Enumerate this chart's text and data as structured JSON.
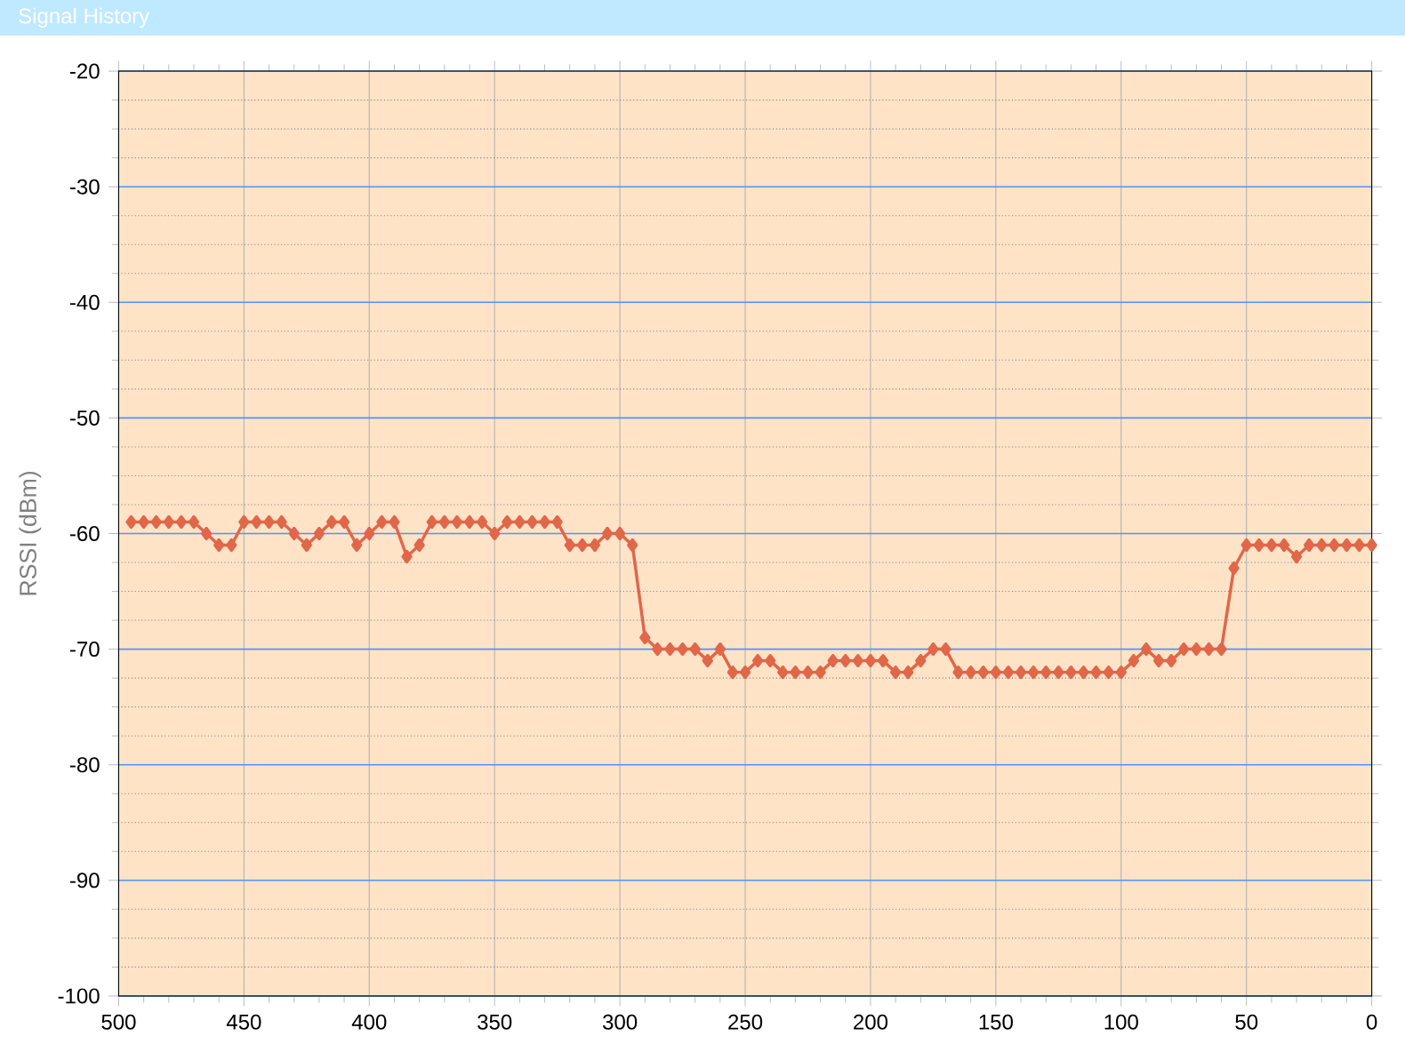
{
  "chart_data": {
    "type": "line",
    "title": "Signal History",
    "ylabel": "RSSI (dBm)",
    "xlim": [
      500,
      0
    ],
    "xticks": [
      500,
      450,
      400,
      350,
      300,
      250,
      200,
      150,
      100,
      50,
      0
    ],
    "ylim": [
      -100,
      -20
    ],
    "yticks": [
      -100,
      -90,
      -80,
      -70,
      -60,
      -50,
      -40,
      -30,
      -20
    ],
    "grid": true,
    "marker": "diamond",
    "line_style": "solid",
    "series": [
      {
        "color": "#e0674a",
        "x": [
          495,
          490,
          485,
          480,
          475,
          470,
          465,
          460,
          455,
          450,
          445,
          440,
          435,
          430,
          425,
          420,
          415,
          410,
          405,
          400,
          395,
          390,
          385,
          380,
          375,
          370,
          365,
          360,
          355,
          350,
          345,
          340,
          335,
          330,
          325,
          320,
          315,
          310,
          305,
          300,
          295,
          290,
          285,
          280,
          275,
          270,
          265,
          260,
          255,
          250,
          245,
          240,
          235,
          230,
          225,
          220,
          215,
          210,
          205,
          200,
          195,
          190,
          185,
          180,
          175,
          170,
          165,
          160,
          155,
          150,
          145,
          140,
          135,
          130,
          125,
          120,
          115,
          110,
          105,
          100,
          95,
          90,
          85,
          80,
          75,
          70,
          65,
          60,
          55,
          50,
          45,
          40,
          35,
          30,
          25,
          20,
          15,
          10,
          5,
          0
        ],
        "values": [
          -59,
          -59,
          -59,
          -59,
          -59,
          -59,
          -60,
          -61,
          -61,
          -59,
          -59,
          -59,
          -59,
          -60,
          -61,
          -60,
          -59,
          -59,
          -61,
          -60,
          -59,
          -59,
          -62,
          -61,
          -59,
          -59,
          -59,
          -59,
          -59,
          -60,
          -59,
          -59,
          -59,
          -59,
          -59,
          -61,
          -61,
          -61,
          -60,
          -60,
          -61,
          -69,
          -70,
          -70,
          -70,
          -70,
          -71,
          -70,
          -72,
          -72,
          -71,
          -71,
          -72,
          -72,
          -72,
          -72,
          -71,
          -71,
          -71,
          -71,
          -71,
          -72,
          -72,
          -71,
          -70,
          -70,
          -72,
          -72,
          -72,
          -72,
          -72,
          -72,
          -72,
          -72,
          -72,
          -72,
          -72,
          -72,
          -72,
          -72,
          -71,
          -70,
          -71,
          -71,
          -70,
          -70,
          -70,
          -70,
          -63,
          -61,
          -61,
          -61,
          -61,
          -62,
          -61,
          -61,
          -61,
          -61,
          -61,
          -61
        ]
      }
    ]
  }
}
